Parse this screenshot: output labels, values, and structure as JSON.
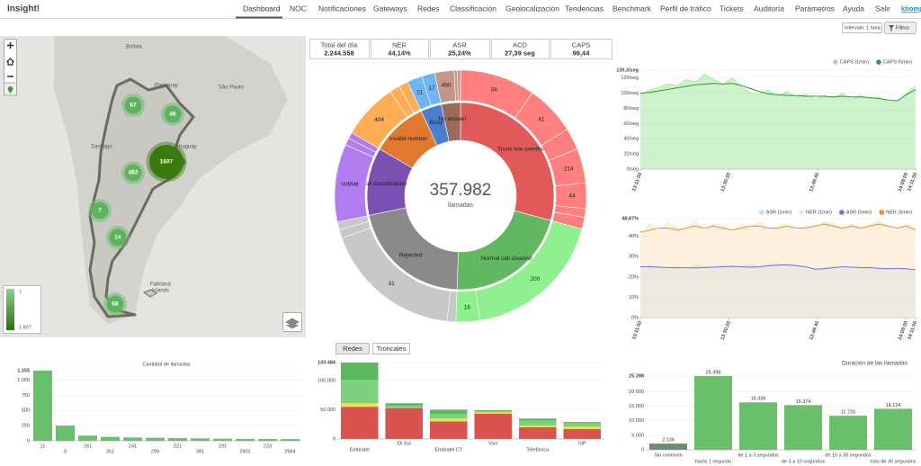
{
  "header": {
    "brand": "Insight!",
    "nav": [
      "Dashboard",
      "NOC",
      "Notificaciones",
      "Gateways",
      "Redes",
      "Classificación",
      "Geolocalización",
      "Tendencias",
      "Benchmark",
      "Perfil de tráfico",
      "Tickets",
      "Auditoría",
      "Parámetros",
      "Ayuda",
      "Salir"
    ],
    "user": "khomp"
  },
  "controls": {
    "interval": "Intervalo: 1 hora",
    "filter": "Filtros"
  },
  "map": {
    "places": [
      "Bolivia",
      "Paraguay",
      "São Paulo",
      "Santiago",
      "Uruguay",
      "Falkland",
      "Islands"
    ],
    "clusters": [
      67,
      46,
      1607,
      482,
      7,
      14,
      68
    ],
    "legend": {
      "min": 7,
      "max": {
        "value": 1607,
        "label": "1.607"
      }
    }
  },
  "kpis": [
    {
      "label": "Total del día",
      "value": "2.244.558"
    },
    {
      "label": "NER",
      "value": "44,14%"
    },
    {
      "label": "ASR",
      "value": "25,24%"
    },
    {
      "label": "ACD",
      "value": "27,39 seg"
    },
    {
      "label": "CAPS",
      "value": "99,44"
    }
  ],
  "donut": {
    "center_value": "357.982",
    "center_label": "llamadas",
    "inner": [
      {
        "label": "Trunk line overflow",
        "share": 29.2,
        "color": "#e05a5a"
      },
      {
        "label": "Normal call clearing",
        "share": 21.4,
        "color": "#62b862"
      },
      {
        "label": "Rejected",
        "share": 21.1,
        "color": "#8a8a8a"
      },
      {
        "label": "Call classification",
        "share": 11.7,
        "color": "#7a50b2"
      },
      {
        "label": "Invalid number",
        "share": 9.7,
        "color": "#e0782e"
      },
      {
        "label": "Busy",
        "share": 3.6,
        "color": "#4a7fd0"
      },
      {
        "label": "No answer",
        "share": 3.3,
        "color": "#9a6b5c"
      }
    ],
    "outer": [
      {
        "label": "34",
        "share": 9.7,
        "color": "#ff7f7f"
      },
      {
        "label": "41",
        "share": 6.4,
        "color": "#ff7f7f"
      },
      {
        "share": 2.8,
        "color": "#ff7f7f"
      },
      {
        "label": "214",
        "share": 4.4,
        "color": "#ff7f7f"
      },
      {
        "label": "44",
        "share": 3.3,
        "color": "#ff7f7f"
      },
      {
        "share": 1.1,
        "color": "#ff7f7f"
      },
      {
        "share": 1.5,
        "color": "#ff7f7f"
      },
      {
        "label": "200",
        "share": 18.3,
        "color": "#8ef08e"
      },
      {
        "label": "16",
        "share": 3.1,
        "color": "#8ef08e"
      },
      {
        "share": 1.1,
        "color": "#c8c8c8"
      },
      {
        "label": "31",
        "share": 17.9,
        "color": "#c8c8c8"
      },
      {
        "share": 1.1,
        "color": "#c8c8c8"
      },
      {
        "share": 1.0,
        "color": "#c8c8c8"
      },
      {
        "label": "VoMail",
        "share": 10.0,
        "color": "#b07cf0"
      },
      {
        "share": 0.9,
        "color": "#b07cf0"
      },
      {
        "share": 0.8,
        "color": "#b07cf0"
      },
      {
        "label": "404",
        "share": 7.2,
        "color": "#ffad55"
      },
      {
        "share": 1.3,
        "color": "#ffad55"
      },
      {
        "share": 1.2,
        "color": "#ffad55"
      },
      {
        "label": "21",
        "share": 1.9,
        "color": "#6db6f2"
      },
      {
        "label": "17",
        "share": 1.7,
        "color": "#6db6f2"
      },
      {
        "label": "460",
        "share": 2.5,
        "color": "#c4968a"
      },
      {
        "share": 0.4,
        "color": "#c4968a"
      },
      {
        "share": 0.4,
        "color": "#c4968a"
      }
    ]
  },
  "caps_chart": {
    "type": "line",
    "xlim": [
      0,
      30
    ],
    "ylim": [
      0,
      130.3
    ],
    "yticks": [
      {
        "value": 0,
        "label": "0/seg"
      },
      {
        "value": 20,
        "label": "20/seg"
      },
      {
        "value": 40,
        "label": "40/seg"
      },
      {
        "value": 60,
        "label": "60/seg"
      },
      {
        "value": 80,
        "label": "80/seg"
      },
      {
        "value": 100,
        "label": "100/seg"
      },
      {
        "value": 120,
        "label": "120/seg"
      },
      {
        "value": 130.3,
        "label": "130,3/seg"
      }
    ],
    "xticks": [
      {
        "value": 0,
        "label": "13:11:00"
      },
      {
        "value": 9.67,
        "label": "13:30:20"
      },
      {
        "value": 19.33,
        "label": "13:49:40"
      },
      {
        "value": 29,
        "label": "14:09:00"
      },
      {
        "value": 30,
        "label": "14:11:00"
      }
    ],
    "series": [
      {
        "name": "CAPS (1min)",
        "color": "#a6e6a6",
        "fill": true,
        "values": [
          98,
          104,
          108,
          112,
          110,
          118,
          115,
          125,
          118,
          112,
          120,
          108,
          100,
          99,
          104,
          96,
          102,
          95,
          99,
          92,
          97,
          94,
          100,
          92,
          97,
          93,
          95,
          89,
          88,
          100,
          110
        ]
      },
      {
        "name": "CAPS (5min)",
        "color": "#2ca02c",
        "values": [
          100,
          101,
          103,
          105,
          107,
          109,
          111,
          112,
          113,
          112,
          113,
          110,
          106,
          102,
          99,
          98,
          97,
          97,
          96,
          96,
          96,
          95,
          96,
          95,
          95,
          94,
          93,
          91,
          90,
          98,
          105
        ]
      }
    ]
  },
  "asr_ner_chart": {
    "type": "line",
    "xlim": [
      0,
      30
    ],
    "ylim": [
      0,
      48.67
    ],
    "yticks": [
      {
        "value": 0,
        "label": "0%"
      },
      {
        "value": 10,
        "label": "10%"
      },
      {
        "value": 20,
        "label": "20%"
      },
      {
        "value": 30,
        "label": "30%"
      },
      {
        "value": 40,
        "label": "40%"
      },
      {
        "value": 48.67,
        "label": "48,67%"
      }
    ],
    "xticks": [
      {
        "value": 0,
        "label": "13:11:00"
      },
      {
        "value": 9.67,
        "label": "13:30:20"
      },
      {
        "value": 19.33,
        "label": "13:49:40"
      },
      {
        "value": 29,
        "label": "14:09:00"
      },
      {
        "value": 30,
        "label": "14:11:00"
      }
    ],
    "series": [
      {
        "name": "ASR (1min)",
        "color": "#bfe3f5",
        "fill": true,
        "values": [
          24,
          26,
          25,
          23.5,
          25.5,
          24,
          26,
          25,
          24.5,
          26,
          25,
          24,
          26.5,
          25,
          26,
          27,
          25.5,
          26,
          24,
          23,
          24.5,
          25.5,
          24,
          25,
          24,
          25.5,
          23.5,
          24.5,
          23,
          24,
          22.5
        ]
      },
      {
        "name": "NER (1min)",
        "color": "#fde3c4",
        "fill": true,
        "values": [
          40,
          46,
          42,
          47,
          44,
          43,
          48,
          42,
          46,
          45,
          41,
          46,
          44,
          47,
          43,
          45,
          46,
          42,
          45,
          44,
          47,
          46,
          43,
          46,
          44,
          45,
          48,
          44,
          42,
          46,
          44
        ]
      },
      {
        "name": "ASR (5min)",
        "color": "#6f6ff0",
        "values": [
          25,
          25,
          24.8,
          24.6,
          24.5,
          24.5,
          24.4,
          24.6,
          24.8,
          25,
          25.2,
          25,
          24.8,
          25,
          25.5,
          25.8,
          26,
          25.5,
          25,
          23.8,
          24,
          24.5,
          25,
          24.8,
          24.6,
          24.5,
          24.2,
          24,
          24.2,
          24,
          23.5
        ]
      },
      {
        "name": "NER (5min)",
        "color": "#f28c1e",
        "values": [
          42,
          43,
          44,
          44,
          43,
          44,
          45,
          44,
          45,
          44,
          43,
          44,
          45,
          45,
          44,
          44,
          45,
          44,
          44,
          45,
          46,
          45,
          44,
          45,
          44,
          45,
          46,
          45,
          44,
          45,
          43
        ]
      }
    ]
  },
  "calls_chart": {
    "type": "bar",
    "title": "Cantidad de llamadas",
    "color": "#6abf6a",
    "categories": [
      "11",
      "0",
      "261",
      "351",
      "241",
      "299",
      "221",
      "381",
      "291",
      "2901",
      "223",
      "2964"
    ],
    "values": [
      1155,
      250,
      85,
      65,
      55,
      50,
      45,
      40,
      35,
      32,
      30,
      28
    ],
    "ylim": [
      0,
      1155
    ],
    "yticks": [
      0,
      250,
      500,
      750,
      {
        "value": 1000,
        "label": "1.000"
      },
      {
        "value": 1155,
        "label": "1.155"
      }
    ]
  },
  "networks_chart": {
    "type": "stacked_bar",
    "tabs": [
      "Redes",
      "Troncales"
    ],
    "categories": [
      "Embratel",
      "Oi Sul",
      "Embratel CT",
      "Vivo",
      "Telefonica",
      "SIP"
    ],
    "ylim": [
      0,
      130484
    ],
    "yticks": [
      0,
      {
        "value": 50000,
        "label": "50.000"
      },
      {
        "value": 100000,
        "label": "100.000"
      },
      {
        "value": 130484,
        "label": "130.484"
      }
    ],
    "series": [
      {
        "color": "#d9534f",
        "values": [
          55000,
          53000,
          30000,
          43000,
          20000,
          17000
        ]
      },
      {
        "color": "#f0e04a",
        "values": [
          6000,
          1000,
          5000,
          3000,
          3000,
          4000
        ]
      },
      {
        "color": "#7ed07e",
        "values": [
          40000,
          3000,
          8000,
          1000,
          8000,
          6000
        ]
      },
      {
        "color": "#5cb85c",
        "values": [
          29484,
          4000,
          7000,
          2000,
          4000,
          2000
        ]
      }
    ]
  },
  "duration_chart": {
    "type": "bar",
    "title": "Duración de las llamadas",
    "categories": [
      "Sin conexión",
      "hasta 1 segundo",
      "de 1 a 3 segundos",
      "de 3 a 10 segundos",
      "de 10 a 30 segundos",
      "más de 30 segundos"
    ],
    "values": [
      2136,
      25398,
      16336,
      15374,
      11726,
      14124
    ],
    "value_labels": [
      "2.136",
      "25.398",
      "16.336",
      "15.374",
      "11.726",
      "14.124"
    ],
    "colors": [
      "#6d8b6d",
      "#6abf6a",
      "#6abf6a",
      "#6abf6a",
      "#6abf6a",
      "#6abf6a"
    ],
    "ylim": [
      0,
      25398
    ],
    "yticks": [
      0,
      {
        "value": 5000,
        "label": "5.000"
      },
      {
        "value": 10000,
        "label": "10.000"
      },
      {
        "value": 15000,
        "label": "15.000"
      },
      {
        "value": 20000,
        "label": "20.000"
      },
      {
        "value": 25398,
        "label": "25.398"
      }
    ]
  }
}
